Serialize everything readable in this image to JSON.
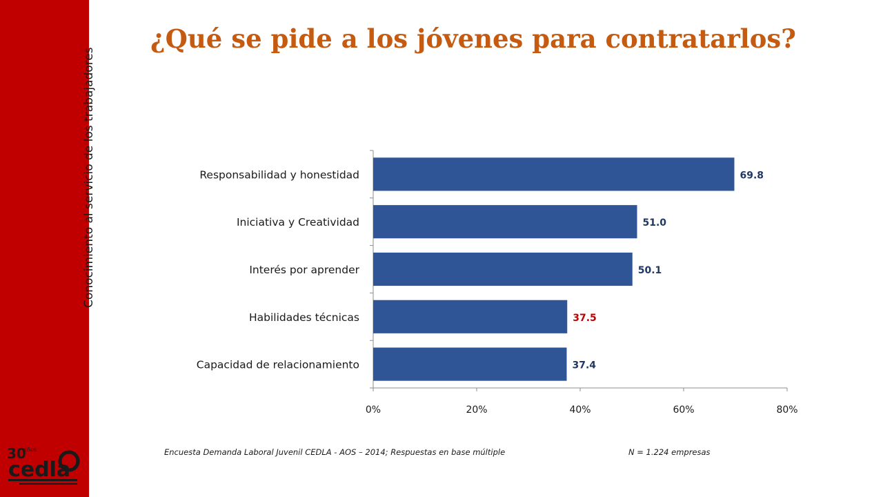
{
  "sidebar": {
    "text": "Conocimiento al servicio de los trabajadores",
    "color": "#c00000"
  },
  "logo": {
    "number": "30",
    "suffix": "años",
    "name": "cedla"
  },
  "title": "¿Qué se pide a los jóvenes para contratarlos?",
  "title_color": "#c55a11",
  "chart_data": {
    "type": "bar",
    "orientation": "horizontal",
    "categories": [
      "Responsabilidad y honestidad",
      "Iniciativa y Creatividad",
      "Interés por aprender",
      "Habilidades técnicas",
      "Capacidad de relacionamiento"
    ],
    "values": [
      69.8,
      51.0,
      50.1,
      37.5,
      37.4
    ],
    "value_labels": [
      "69.8",
      "51.0",
      "50.1",
      "37.5",
      "37.4"
    ],
    "label_colors": [
      "#1f3864",
      "#1f3864",
      "#1f3864",
      "#c00000",
      "#1f3864"
    ],
    "bar_color": "#2f5597",
    "xlim": [
      0,
      80
    ],
    "ticks": [
      0,
      20,
      40,
      60,
      80
    ],
    "tick_labels": [
      "0%",
      "20%",
      "40%",
      "60%",
      "80%"
    ],
    "grid": false
  },
  "footnote": {
    "source": "Encuesta Demanda Laboral Juvenil CEDLA - AOS – 2014; Respuestas en base múltiple",
    "sample": "N =  1.224 empresas"
  }
}
